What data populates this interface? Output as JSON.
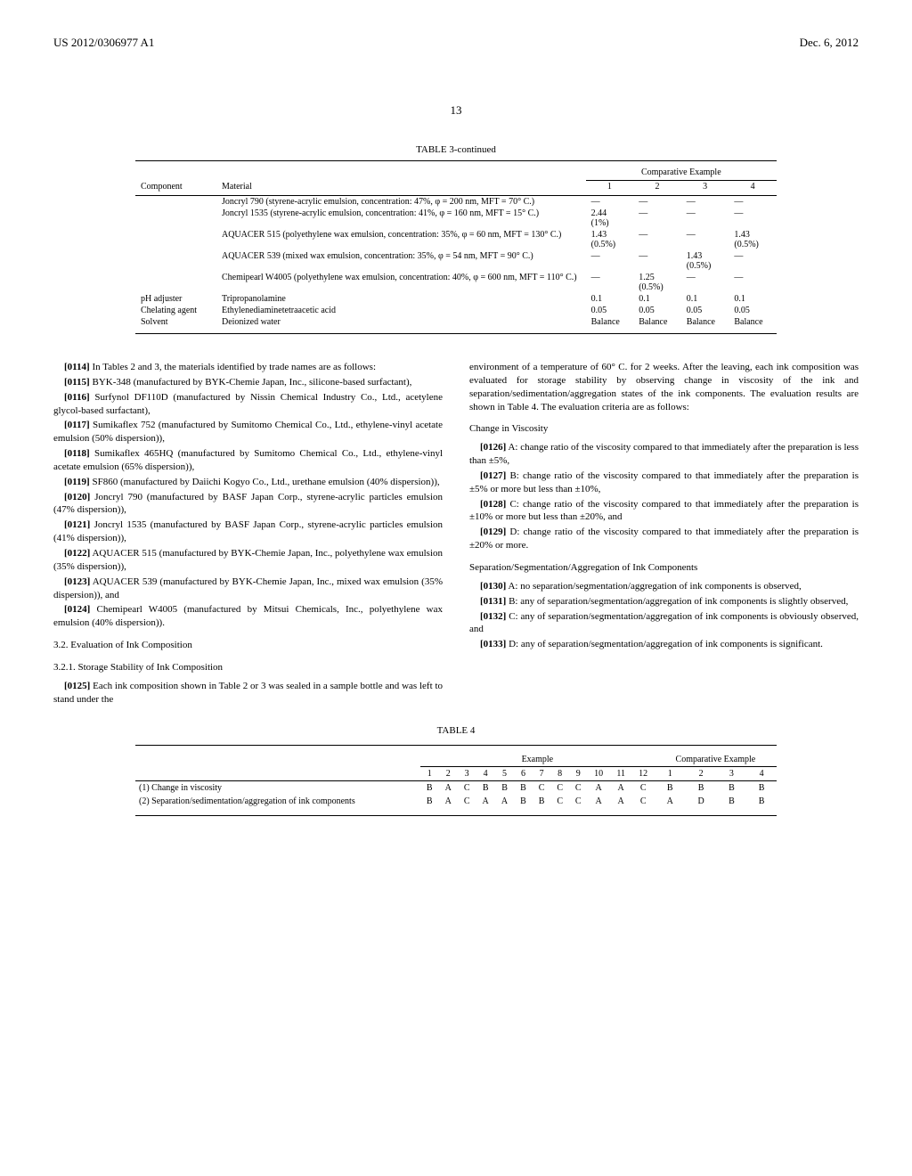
{
  "header": {
    "doc_number": "US 2012/0306977 A1",
    "doc_date": "Dec. 6, 2012",
    "page_number": "13"
  },
  "table3": {
    "caption": "TABLE 3-continued",
    "group_header": "Comparative Example",
    "col_headers": [
      "Component",
      "Material",
      "1",
      "2",
      "3",
      "4"
    ],
    "rows": [
      {
        "component": "",
        "material": "Joncryl 790 (styrene-acrylic emulsion, concentration: 47%, φ = 200 nm, MFT = 70° C.)",
        "v": [
          "—",
          "—",
          "—",
          "—"
        ]
      },
      {
        "component": "",
        "material": "Joncryl 1535 (styrene-acrylic emulsion, concentration: 41%, φ = 160 nm, MFT = 15° C.)",
        "v": [
          "2.44\n(1%)",
          "—",
          "—",
          "—"
        ]
      },
      {
        "component": "",
        "material": "AQUACER 515 (polyethylene wax emulsion, concentration: 35%, φ = 60 nm, MFT = 130° C.)",
        "v": [
          "1.43\n(0.5%)",
          "—",
          "—",
          "1.43\n(0.5%)"
        ]
      },
      {
        "component": "",
        "material": "AQUACER 539 (mixed wax emulsion, concentration: 35%, φ = 54 nm, MFT = 90° C.)",
        "v": [
          "—",
          "—",
          "1.43\n(0.5%)",
          "—"
        ]
      },
      {
        "component": "",
        "material": "Chemipearl W4005 (polyethylene wax emulsion, concentration: 40%, φ = 600 nm, MFT = 110° C.)",
        "v": [
          "—",
          "1.25\n(0.5%)",
          "—",
          "—"
        ]
      },
      {
        "component": "pH adjuster",
        "material": "Tripropanolamine",
        "v": [
          "0.1",
          "0.1",
          "0.1",
          "0.1"
        ]
      },
      {
        "component": "Chelating agent",
        "material": "Ethylenediaminetetraacetic acid",
        "v": [
          "0.05",
          "0.05",
          "0.05",
          "0.05"
        ]
      },
      {
        "component": "Solvent",
        "material": "Deionized water",
        "v": [
          "Balance",
          "Balance",
          "Balance",
          "Balance"
        ]
      }
    ]
  },
  "paragraphs_left": [
    {
      "num": "[0114]",
      "text": "In Tables 2 and 3, the materials identified by trade names are as follows:"
    },
    {
      "num": "[0115]",
      "text": "BYK-348 (manufactured by BYK-Chemie Japan, Inc., silicone-based surfactant),"
    },
    {
      "num": "[0116]",
      "text": "Surfynol DF110D (manufactured by Nissin Chemical Industry Co., Ltd., acetylene glycol-based surfactant),"
    },
    {
      "num": "[0117]",
      "text": "Sumikaflex 752 (manufactured by Sumitomo Chemical Co., Ltd., ethylene-vinyl acetate emulsion (50% dispersion)),"
    },
    {
      "num": "[0118]",
      "text": "Sumikaflex 465HQ (manufactured by Sumitomo Chemical Co., Ltd., ethylene-vinyl acetate emulsion (65% dispersion)),"
    },
    {
      "num": "[0119]",
      "text": "SF860 (manufactured by Daiichi Kogyo Co., Ltd., urethane emulsion (40% dispersion)),"
    },
    {
      "num": "[0120]",
      "text": "Joncryl 790 (manufactured by BASF Japan Corp., styrene-acrylic particles emulsion (47% dispersion)),"
    },
    {
      "num": "[0121]",
      "text": "Joncryl 1535 (manufactured by BASF Japan Corp., styrene-acrylic particles emulsion (41% dispersion)),"
    },
    {
      "num": "[0122]",
      "text": "AQUACER 515 (manufactured by BYK-Chemie Japan, Inc., polyethylene wax emulsion (35% dispersion)),"
    },
    {
      "num": "[0123]",
      "text": "AQUACER 539 (manufactured by BYK-Chemie Japan, Inc., mixed wax emulsion (35% dispersion)), and"
    },
    {
      "num": "[0124]",
      "text": "Chemipearl W4005 (manufactured by Mitsui Chemicals, Inc., polyethylene wax emulsion (40% dispersion))."
    }
  ],
  "subheads_left": [
    {
      "text": "3.2. Evaluation of Ink Composition"
    },
    {
      "text": "3.2.1. Storage Stability of Ink Composition"
    }
  ],
  "para_0125": {
    "num": "[0125]",
    "text": "Each ink composition shown in Table 2 or 3 was sealed in a sample bottle and was left to stand under the"
  },
  "para_right_cont": "environment of a temperature of 60° C. for 2 weeks. After the leaving, each ink composition was evaluated for storage stability by observing change in viscosity of the ink and separation/sedimentation/aggregation states of the ink components. The evaluation results are shown in Table 4. The evaluation criteria are as follows:",
  "subhead_viscosity": "Change in Viscosity",
  "paragraphs_viscosity": [
    {
      "num": "[0126]",
      "text": "A: change ratio of the viscosity compared to that immediately after the preparation is less than ±5%,"
    },
    {
      "num": "[0127]",
      "text": "B: change ratio of the viscosity compared to that immediately after the preparation is ±5% or more but less than ±10%,"
    },
    {
      "num": "[0128]",
      "text": "C: change ratio of the viscosity compared to that immediately after the preparation is ±10% or more but less than ±20%, and"
    },
    {
      "num": "[0129]",
      "text": "D: change ratio of the viscosity compared to that immediately after the preparation is ±20% or more."
    }
  ],
  "subhead_sep": "Separation/Segmentation/Aggregation of Ink Components",
  "paragraphs_sep": [
    {
      "num": "[0130]",
      "text": "A: no separation/segmentation/aggregation of ink components is observed,"
    },
    {
      "num": "[0131]",
      "text": "B: any of separation/segmentation/aggregation of ink components is slightly observed,"
    },
    {
      "num": "[0132]",
      "text": "C: any of separation/segmentation/aggregation of ink components is obviously observed, and"
    },
    {
      "num": "[0133]",
      "text": "D: any of separation/segmentation/aggregation of ink components is significant."
    }
  ],
  "table4": {
    "caption": "TABLE 4",
    "group1": "Example",
    "group2": "Comparative Example",
    "cols_ex": [
      "1",
      "2",
      "3",
      "4",
      "5",
      "6",
      "7",
      "8",
      "9",
      "10",
      "11",
      "12"
    ],
    "cols_ce": [
      "1",
      "2",
      "3",
      "4"
    ],
    "rows": [
      {
        "label": "(1) Change in viscosity",
        "ex": [
          "B",
          "A",
          "C",
          "B",
          "B",
          "B",
          "C",
          "C",
          "C",
          "A",
          "A",
          "C"
        ],
        "ce": [
          "B",
          "B",
          "B",
          "B"
        ]
      },
      {
        "label": "(2) Separation/sedimentation/aggregation of ink components",
        "ex": [
          "B",
          "A",
          "C",
          "A",
          "A",
          "B",
          "B",
          "C",
          "C",
          "A",
          "A",
          "C"
        ],
        "ce": [
          "A",
          "D",
          "B",
          "B"
        ]
      }
    ]
  }
}
